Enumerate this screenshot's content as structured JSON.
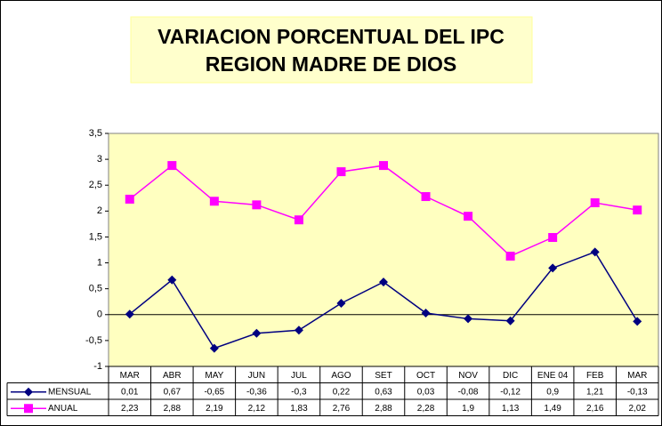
{
  "chart_data": {
    "type": "line",
    "title": "VARIACION  PORCENTUAL DEL IPC",
    "subtitle": "REGION MADRE DE DIOS",
    "categories": [
      "MAR",
      "ABR",
      "MAY",
      "JUN",
      "JUL",
      "AGO",
      "SET",
      "OCT",
      "NOV",
      "DIC",
      "ENE 04",
      "FEB",
      "MAR"
    ],
    "series": [
      {
        "name": "MENSUAL",
        "color": "#000080",
        "marker": "diamond",
        "values": [
          0.01,
          0.67,
          -0.65,
          -0.36,
          -0.3,
          0.22,
          0.63,
          0.03,
          -0.08,
          -0.12,
          0.9,
          1.21,
          -0.13
        ],
        "value_labels": [
          "0,01",
          "0,67",
          "-0,65",
          "-0,36",
          "-0,3",
          "0,22",
          "0,63",
          "0,03",
          "-0,08",
          "-0,12",
          "0,9",
          "1,21",
          "-0,13"
        ]
      },
      {
        "name": "ANUAL",
        "color": "#ff00ff",
        "marker": "square",
        "values": [
          2.23,
          2.88,
          2.19,
          2.12,
          1.83,
          2.76,
          2.88,
          2.28,
          1.9,
          1.13,
          1.49,
          2.16,
          2.02
        ],
        "value_labels": [
          "2,23",
          "2,88",
          "2,19",
          "2,12",
          "1,83",
          "2,76",
          "2,88",
          "2,28",
          "1,9",
          "1,13",
          "1,49",
          "2,16",
          "2,02"
        ]
      }
    ],
    "ylim": [
      -1,
      3.5
    ],
    "yticks": [
      -1,
      {
        "value": -0.5,
        "label": "-0,5"
      },
      0,
      {
        "value": 0.5,
        "label": "0,5"
      },
      1,
      {
        "value": 1.5,
        "label": "1,5"
      },
      2,
      {
        "value": 2.5,
        "label": "2,5"
      },
      3,
      {
        "value": 3.5,
        "label": "3,5"
      }
    ],
    "grid": false,
    "plot_background": "#ffffc0"
  }
}
